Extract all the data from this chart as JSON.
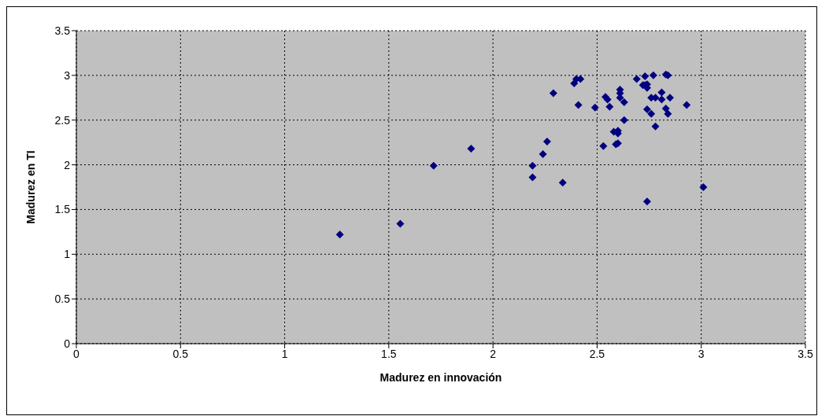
{
  "chart_data": {
    "type": "scatter",
    "xlabel": "Madurez en innovación",
    "ylabel": "Madurez en TI",
    "xlim": [
      0,
      3.5
    ],
    "xticks": [
      0,
      0.5,
      1,
      1.5,
      2,
      2.5,
      3,
      3.5
    ],
    "ylim": [
      0,
      3.5
    ],
    "yticks": [
      0,
      0.5,
      1,
      1.5,
      2,
      2.5,
      3,
      3.5
    ],
    "grid": true,
    "marker": "diamond",
    "series": [
      {
        "color": "#000080",
        "x": [
          1.265,
          1.555,
          1.715,
          1.895,
          2.19,
          2.19,
          2.24,
          2.26,
          2.335,
          2.29,
          2.39,
          2.4,
          2.42,
          2.41,
          2.49,
          2.54,
          2.55,
          2.56,
          2.61,
          2.61,
          2.61,
          2.63,
          2.63,
          2.58,
          2.6,
          2.6,
          2.59,
          2.6,
          2.53,
          2.69,
          2.73,
          2.77,
          2.72,
          2.73,
          2.74,
          2.74,
          2.83,
          2.84,
          2.81,
          2.76,
          2.78,
          2.81,
          2.85,
          2.93,
          2.74,
          2.76,
          2.83,
          2.84,
          2.78,
          2.74,
          3.01
        ],
        "values": [
          1.22,
          1.34,
          1.99,
          2.18,
          1.99,
          1.86,
          2.12,
          2.26,
          1.8,
          2.8,
          2.91,
          2.96,
          2.96,
          2.67,
          2.64,
          2.76,
          2.73,
          2.65,
          2.84,
          2.8,
          2.75,
          2.7,
          2.5,
          2.37,
          2.38,
          2.35,
          2.23,
          2.24,
          2.21,
          2.96,
          2.99,
          3.0,
          2.89,
          2.89,
          2.9,
          2.86,
          3.01,
          3.0,
          2.81,
          2.75,
          2.75,
          2.73,
          2.75,
          2.67,
          2.62,
          2.57,
          2.63,
          2.57,
          2.43,
          1.59,
          1.75
        ]
      }
    ]
  }
}
